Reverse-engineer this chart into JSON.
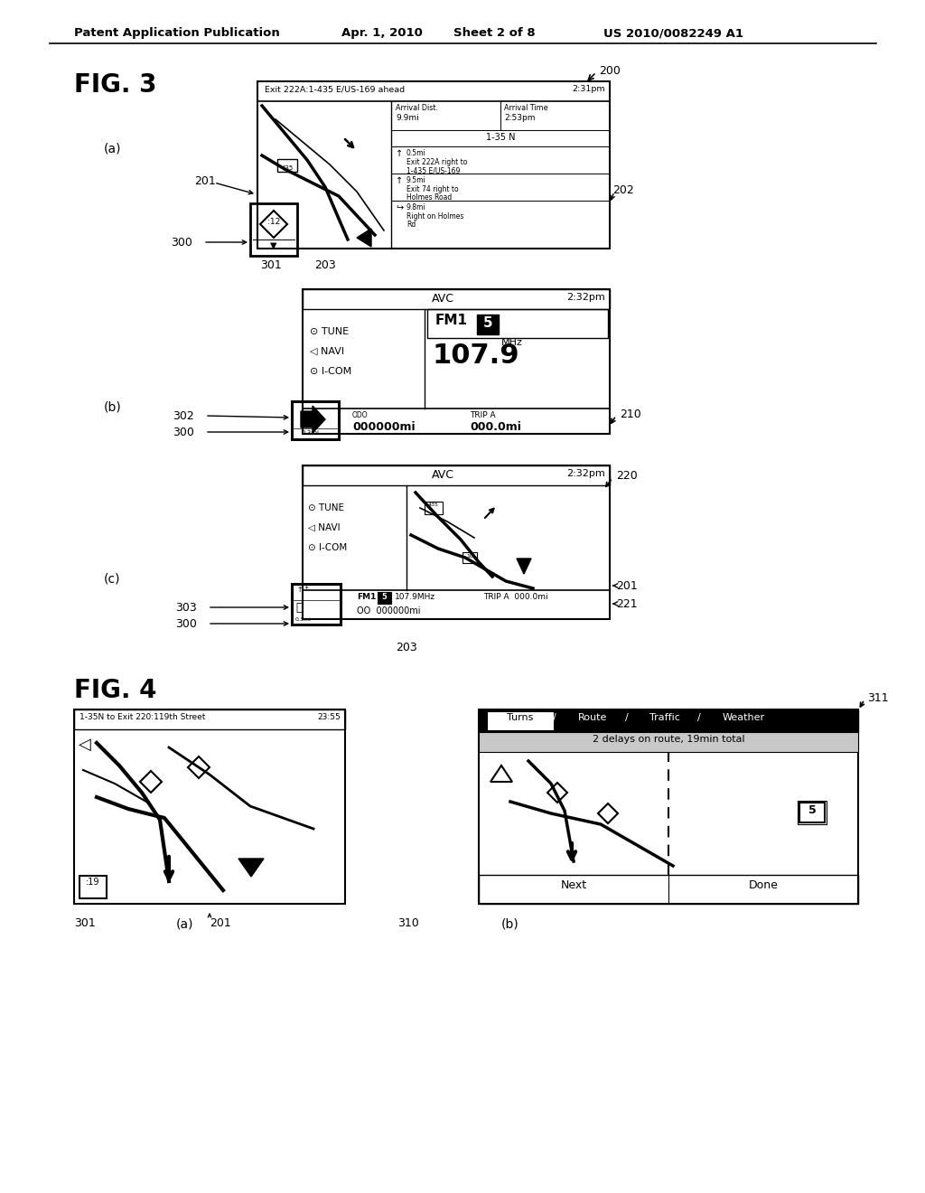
{
  "bg_color": "#ffffff",
  "header_text": "Patent Application Publication",
  "header_date": "Apr. 1, 2010",
  "header_sheet": "Sheet 2 of 8",
  "header_patent": "US 2010/0082249 A1",
  "fig3_label": "FIG. 3",
  "fig4_label": "FIG. 4"
}
